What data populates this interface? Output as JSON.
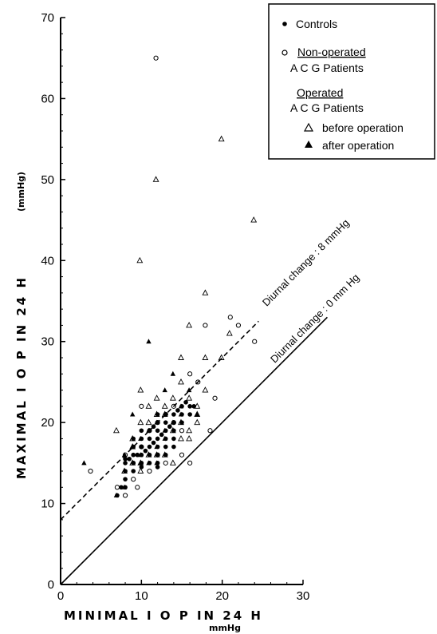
{
  "chart_data": {
    "type": "scatter",
    "title": "",
    "xlabel": "MINIMAL  I O P  IN 24 H",
    "xunit": "mmHg",
    "ylabel": "MAXIMAL  I O P  IN 24 H",
    "yunit": "(mmHg)",
    "xlim": [
      0,
      30
    ],
    "ylim": [
      0,
      70
    ],
    "xticks": [
      "0",
      "10",
      "20",
      "30"
    ],
    "yticks": [
      "0",
      "10",
      "20",
      "30",
      "40",
      "50",
      "60",
      "70"
    ],
    "grid": false,
    "legend_position": "top-right",
    "legend": {
      "controls": "Controls",
      "nonop_heading": "Non-operated",
      "nonop_sub": "A C G  Patients",
      "op_heading": "Operated",
      "op_sub": "A C G  Patients",
      "before": "before operation",
      "after": "after operation"
    },
    "reference_lines": [
      {
        "label": "Diurnal change : 8 mmHg",
        "offset": 8,
        "style": "dashed"
      },
      {
        "label": "Diurnal change : 0 mm Hg",
        "offset": 0,
        "style": "solid"
      }
    ],
    "series": [
      {
        "marker": "filled-circle",
        "points": [
          [
            8,
            12
          ],
          [
            8,
            13
          ],
          [
            8,
            14
          ],
          [
            8,
            15
          ],
          [
            9,
            14
          ],
          [
            9,
            15
          ],
          [
            9,
            16
          ],
          [
            9,
            17
          ],
          [
            9,
            18
          ],
          [
            10,
            15
          ],
          [
            10,
            16
          ],
          [
            10,
            17
          ],
          [
            10,
            18
          ],
          [
            11,
            16
          ],
          [
            11,
            17
          ],
          [
            11,
            18
          ],
          [
            11,
            19
          ],
          [
            12,
            15
          ],
          [
            12,
            16
          ],
          [
            12,
            17
          ],
          [
            12,
            18
          ],
          [
            12,
            19
          ],
          [
            12,
            20
          ],
          [
            13,
            17
          ],
          [
            13,
            18
          ],
          [
            13,
            19
          ],
          [
            13,
            20
          ],
          [
            13,
            21
          ],
          [
            14,
            18
          ],
          [
            14,
            19
          ],
          [
            14,
            20
          ],
          [
            14,
            21
          ],
          [
            15,
            20
          ],
          [
            15,
            21
          ],
          [
            15,
            22
          ],
          [
            16,
            21
          ],
          [
            16,
            22
          ],
          [
            9.5,
            16
          ],
          [
            10.5,
            16.5
          ],
          [
            11.5,
            17.5
          ],
          [
            12.5,
            18.5
          ],
          [
            13.5,
            19.5
          ],
          [
            10,
            19
          ],
          [
            11,
            15
          ],
          [
            12,
            21
          ],
          [
            13,
            16
          ],
          [
            14,
            17
          ],
          [
            8.5,
            15.5
          ],
          [
            7,
            11
          ],
          [
            7.5,
            12
          ],
          [
            8,
            15.5
          ],
          [
            16.5,
            22
          ],
          [
            15.5,
            22.5
          ],
          [
            14.5,
            21.5
          ],
          [
            11.5,
            19.5
          ],
          [
            12,
            14.5
          ],
          [
            9,
            15
          ],
          [
            10,
            14.5
          ]
        ]
      },
      {
        "marker": "open-circle",
        "points": [
          [
            11.8,
            65
          ],
          [
            17.9,
            32
          ],
          [
            18.5,
            19
          ],
          [
            19.1,
            23
          ],
          [
            21,
            33
          ],
          [
            22,
            32
          ],
          [
            24,
            30
          ],
          [
            14,
            20
          ],
          [
            15,
            19
          ],
          [
            16,
            26
          ],
          [
            17,
            25
          ],
          [
            10,
            22
          ],
          [
            13,
            21
          ],
          [
            12,
            16
          ],
          [
            11,
            14
          ],
          [
            9,
            13
          ],
          [
            8,
            11
          ],
          [
            7,
            12
          ],
          [
            3.7,
            14
          ],
          [
            9.5,
            12
          ],
          [
            12,
            20
          ],
          [
            13,
            15
          ],
          [
            15,
            16
          ],
          [
            16,
            15
          ],
          [
            8,
            16
          ],
          [
            10,
            17
          ],
          [
            11,
            19
          ],
          [
            14,
            22
          ]
        ]
      },
      {
        "marker": "open-triangle",
        "points": [
          [
            9.8,
            40
          ],
          [
            11.8,
            50
          ],
          [
            19.9,
            55
          ],
          [
            23.9,
            45
          ],
          [
            17.9,
            36
          ],
          [
            15.9,
            32
          ],
          [
            17.9,
            28
          ],
          [
            19.9,
            28
          ],
          [
            20.9,
            31
          ],
          [
            14.9,
            28
          ],
          [
            14.9,
            25
          ],
          [
            9.9,
            24
          ],
          [
            11.9,
            23
          ],
          [
            12.9,
            22
          ],
          [
            14.9,
            20
          ],
          [
            15.9,
            19
          ],
          [
            16.9,
            22
          ],
          [
            17.9,
            24
          ],
          [
            16.9,
            20
          ],
          [
            6.9,
            19
          ],
          [
            8.9,
            18
          ],
          [
            9.9,
            20
          ],
          [
            11.9,
            21
          ],
          [
            13.9,
            23
          ],
          [
            14.9,
            18
          ],
          [
            15.9,
            18
          ],
          [
            8.9,
            15
          ],
          [
            9.9,
            15
          ],
          [
            11.9,
            16
          ],
          [
            12.9,
            16
          ],
          [
            8.9,
            17
          ],
          [
            10.9,
            20
          ],
          [
            10.9,
            22
          ],
          [
            13.9,
            19
          ],
          [
            15.9,
            23
          ],
          [
            13.9,
            15
          ],
          [
            7.9,
            14
          ],
          [
            9.9,
            14
          ],
          [
            10.9,
            16
          ],
          [
            12.9,
            21
          ],
          [
            16.9,
            21
          ]
        ]
      },
      {
        "marker": "filled-triangle",
        "points": [
          [
            2.9,
            15
          ],
          [
            6.9,
            11
          ],
          [
            7.9,
            16
          ],
          [
            8.9,
            17
          ],
          [
            9.9,
            18
          ],
          [
            10.9,
            19
          ],
          [
            11.9,
            20
          ],
          [
            12.9,
            24
          ],
          [
            14.9,
            22
          ],
          [
            15.9,
            24
          ],
          [
            13.9,
            26
          ],
          [
            10.9,
            30
          ],
          [
            16.9,
            21
          ],
          [
            8.9,
            21
          ],
          [
            7.9,
            12
          ],
          [
            9.9,
            15
          ],
          [
            10.9,
            15
          ],
          [
            11.9,
            15
          ],
          [
            12.9,
            18
          ],
          [
            13.9,
            20
          ],
          [
            14.9,
            21
          ],
          [
            11.9,
            17
          ],
          [
            12.9,
            19
          ],
          [
            9.9,
            16
          ]
        ]
      }
    ]
  }
}
